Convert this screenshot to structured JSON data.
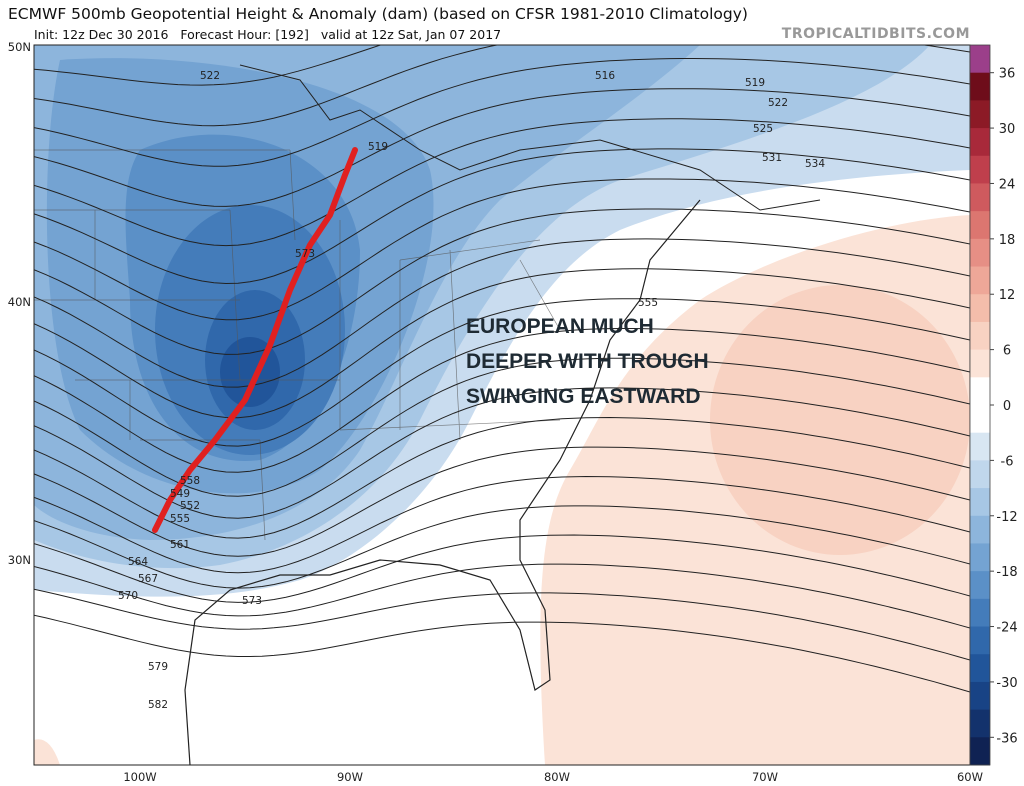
{
  "header": {
    "title": "ECMWF 500mb Geopotential Height & Anomaly (dam) (based on CFSR 1981-2010 Climatology)",
    "subtitle": "Init: 12z Dec 30 2016   Forecast Hour: [192]   valid at 12z Sat, Jan 07 2017",
    "site": "TROPICALTIDBITS.COM"
  },
  "map": {
    "lat_labels": [
      "50N",
      "40N",
      "30N"
    ],
    "lon_labels": [
      "100W",
      "90W",
      "80W",
      "70W",
      "60W"
    ],
    "contour_labels": [
      522,
      516,
      519,
      522,
      525,
      531,
      534,
      519,
      573,
      555,
      558,
      549,
      552,
      555,
      561,
      564,
      567,
      570,
      573,
      579,
      582
    ],
    "annotation": [
      "EUROPEAN MUCH",
      "DEEPER WITH TROUGH",
      "SWINGING EASTWARD"
    ]
  },
  "colorbar": {
    "ticks": [
      36,
      30,
      24,
      18,
      12,
      6,
      0,
      -6,
      -12,
      -18,
      -24,
      -30,
      -36
    ],
    "colors": [
      "#9b3f8a",
      "#6e0d1a",
      "#8c1a26",
      "#a8293a",
      "#bf3f4c",
      "#cf5a5e",
      "#dc7670",
      "#e68f85",
      "#eea798",
      "#f4bdab",
      "#f8d2c2",
      "#fbe3d7",
      "#ffffff",
      "#ffffff",
      "#d8e6f2",
      "#c0d7ec",
      "#a7c7e5",
      "#8db5dc",
      "#74a3d2",
      "#5b90c7",
      "#447cba",
      "#3068ab",
      "#21559a",
      "#184385",
      "#13326c",
      "#0f2253"
    ]
  }
}
